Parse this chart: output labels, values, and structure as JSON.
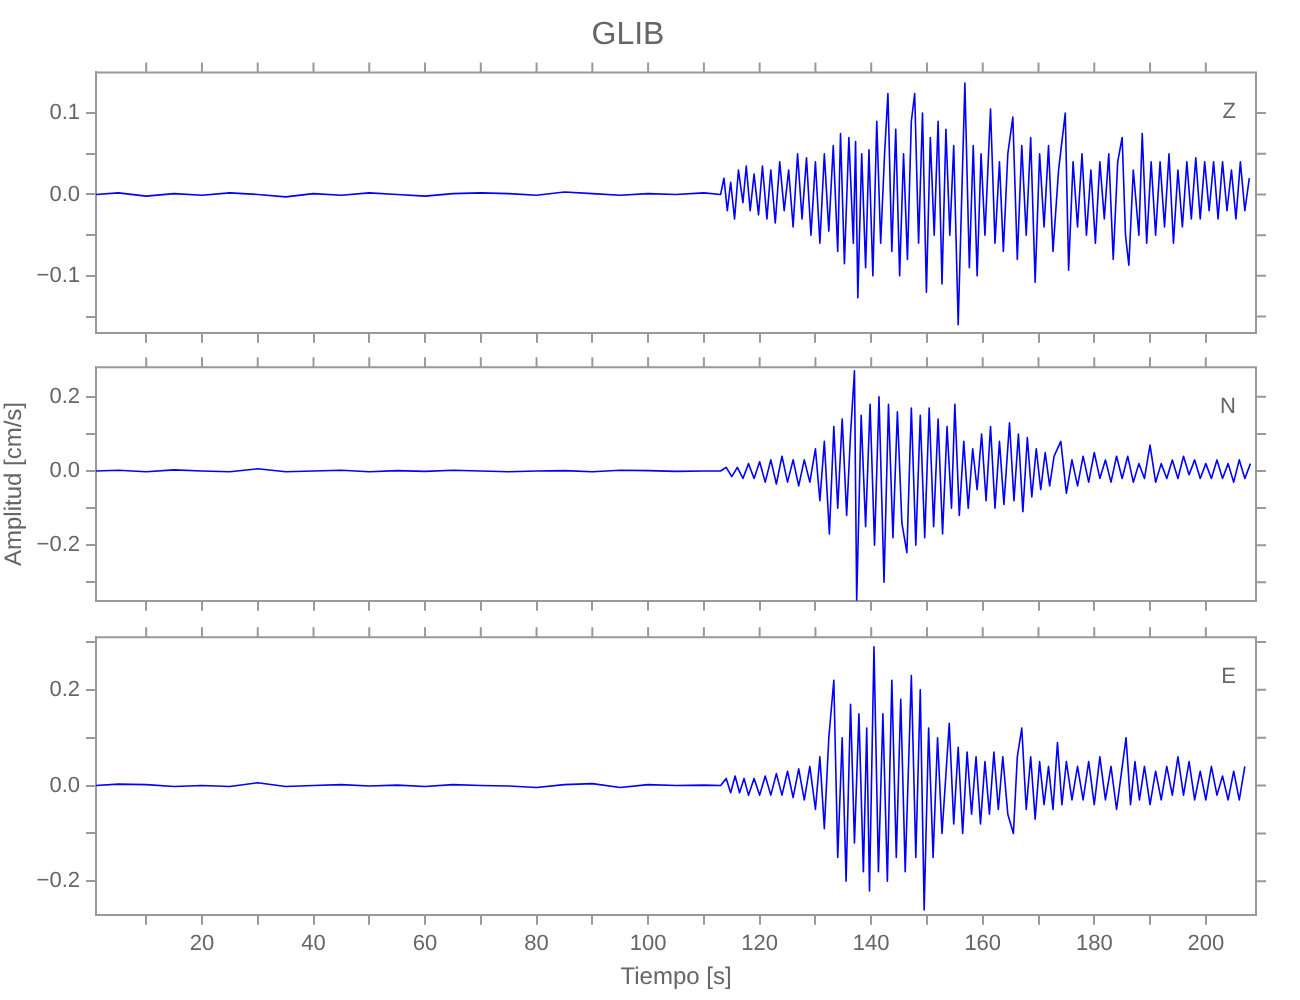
{
  "chart_data": [
    {
      "type": "line",
      "title": "GLIB",
      "annotations": [
        "Z"
      ],
      "tick_labels": "y",
      "grid": false,
      "legend": false,
      "marker": "none",
      "line_style": "solid",
      "xlim": [
        1,
        209
      ],
      "xticks": [
        {
          "value": 10,
          "label": null
        },
        {
          "value": 20,
          "label": null
        },
        {
          "value": 30,
          "label": null
        },
        {
          "value": 40,
          "label": null
        },
        {
          "value": 50,
          "label": null
        },
        {
          "value": 60,
          "label": null
        },
        {
          "value": 70,
          "label": null
        },
        {
          "value": 80,
          "label": null
        },
        {
          "value": 90,
          "label": null
        },
        {
          "value": 100,
          "label": null
        },
        {
          "value": 110,
          "label": null
        },
        {
          "value": 120,
          "label": null
        },
        {
          "value": 130,
          "label": null
        },
        {
          "value": 140,
          "label": null
        },
        {
          "value": 150,
          "label": null
        },
        {
          "value": 160,
          "label": null
        },
        {
          "value": 170,
          "label": null
        },
        {
          "value": 180,
          "label": null
        },
        {
          "value": 190,
          "label": null
        },
        {
          "value": 200,
          "label": null
        }
      ],
      "ylim": [
        -0.17,
        0.15
      ],
      "yticks": [
        {
          "value": -0.15,
          "label": null
        },
        {
          "value": -0.1,
          "label": "−0.1"
        },
        {
          "value": -0.05,
          "label": null
        },
        {
          "value": 0,
          "label": "0.0"
        },
        {
          "value": 0.05,
          "label": null
        },
        {
          "value": 0.1,
          "label": "0.1"
        }
      ],
      "x": [
        1,
        5,
        10,
        15,
        20,
        25,
        30,
        35,
        40,
        45,
        50,
        55,
        60,
        65,
        70,
        75,
        80,
        85,
        90,
        95,
        100,
        105,
        110,
        113,
        113.6,
        114.2,
        114.8,
        115.5,
        116.2,
        117,
        117.6,
        118.3,
        119,
        119.8,
        120.5,
        121.3,
        122,
        122.8,
        123.6,
        124.4,
        125.2,
        126,
        126.8,
        127.6,
        128.4,
        129.2,
        130,
        130.8,
        131.6,
        132.4,
        133.2,
        134,
        134.5,
        135.2,
        136,
        136.8,
        137.2,
        137.6,
        138.3,
        139,
        139.6,
        140.3,
        141,
        141.7,
        142.4,
        143,
        143.7,
        144.4,
        145.1,
        145.8,
        146.5,
        147.2,
        147.8,
        148.5,
        149.2,
        149.9,
        150.6,
        151.3,
        152,
        152.7,
        153.4,
        154.1,
        154.8,
        155.6,
        156.8,
        157.6,
        158.3,
        159,
        159.7,
        160.4,
        161.4,
        162.2,
        163,
        163.7,
        164.5,
        165.4,
        166.2,
        167,
        167.8,
        168.6,
        169.4,
        170.2,
        171,
        171.8,
        172.6,
        173.6,
        174.8,
        175.4,
        176.2,
        177,
        177.8,
        178.6,
        179.4,
        180.2,
        181,
        181.8,
        182.6,
        183.4,
        184.2,
        185,
        185.6,
        186.2,
        187,
        188,
        188.6,
        189.4,
        190.2,
        191,
        191.8,
        192.6,
        193.4,
        194.2,
        195,
        195.8,
        196.6,
        197.4,
        198.2,
        199,
        199.8,
        200.6,
        201.4,
        202.2,
        203,
        203.8,
        204.6,
        205.4,
        206.2,
        207,
        207.8
      ],
      "series": [
        {
          "color": "#0000ff",
          "values": [
            0,
            0.002,
            -0.002,
            0.001,
            -0.001,
            0.002,
            0,
            -0.003,
            0.001,
            -0.001,
            0.002,
            0,
            -0.002,
            0.001,
            0.002,
            0.001,
            -0.001,
            0.003,
            0.001,
            -0.001,
            0.001,
            0,
            0.002,
            0,
            0.02,
            -0.02,
            0.015,
            -0.03,
            0.03,
            -0.01,
            0.035,
            -0.02,
            0.025,
            -0.025,
            0.035,
            -0.03,
            0.03,
            -0.035,
            0.04,
            -0.02,
            0.03,
            -0.04,
            0.05,
            -0.03,
            0.045,
            -0.05,
            0.04,
            -0.06,
            0.05,
            -0.045,
            0.06,
            -0.07,
            0.075,
            -0.085,
            0.07,
            -0.06,
            0.065,
            -0.127,
            0.05,
            -0.09,
            0.055,
            -0.1,
            0.09,
            -0.06,
            0.05,
            0.124,
            -0.07,
            0.08,
            -0.1,
            0.05,
            -0.08,
            0.09,
            0.124,
            -0.06,
            0.1,
            -0.12,
            0.07,
            -0.05,
            0.09,
            -0.11,
            0.08,
            -0.05,
            0.06,
            -0.16,
            0.137,
            -0.09,
            0.06,
            -0.1,
            0.05,
            -0.05,
            0.105,
            -0.06,
            0.04,
            -0.07,
            0.05,
            0.095,
            -0.08,
            0.06,
            -0.05,
            0.07,
            -0.108,
            0.05,
            -0.04,
            0.06,
            -0.07,
            0.03,
            0.1,
            -0.093,
            0.04,
            -0.04,
            0.05,
            -0.05,
            0.03,
            -0.06,
            0.04,
            -0.03,
            0.05,
            -0.08,
            0.04,
            0.07,
            -0.05,
            -0.087,
            0.03,
            -0.05,
            0.075,
            -0.06,
            0.04,
            -0.05,
            0.04,
            -0.04,
            0.05,
            -0.06,
            0.03,
            -0.04,
            0.04,
            -0.03,
            0.045,
            -0.03,
            0.04,
            -0.02,
            0.04,
            -0.03,
            0.04,
            -0.02,
            0.03,
            -0.03,
            0.04,
            -0.02,
            0.02
          ]
        }
      ]
    },
    {
      "type": "line",
      "ylabel": "Amplitud [cm/s]",
      "annotations": [
        "N"
      ],
      "tick_labels": "y",
      "grid": false,
      "legend": false,
      "marker": "none",
      "line_style": "solid",
      "xlim": [
        1,
        209
      ],
      "xticks": [
        {
          "value": 10,
          "label": null
        },
        {
          "value": 20,
          "label": null
        },
        {
          "value": 30,
          "label": null
        },
        {
          "value": 40,
          "label": null
        },
        {
          "value": 50,
          "label": null
        },
        {
          "value": 60,
          "label": null
        },
        {
          "value": 70,
          "label": null
        },
        {
          "value": 80,
          "label": null
        },
        {
          "value": 90,
          "label": null
        },
        {
          "value": 100,
          "label": null
        },
        {
          "value": 110,
          "label": null
        },
        {
          "value": 120,
          "label": null
        },
        {
          "value": 130,
          "label": null
        },
        {
          "value": 140,
          "label": null
        },
        {
          "value": 150,
          "label": null
        },
        {
          "value": 160,
          "label": null
        },
        {
          "value": 170,
          "label": null
        },
        {
          "value": 180,
          "label": null
        },
        {
          "value": 190,
          "label": null
        },
        {
          "value": 200,
          "label": null
        }
      ],
      "ylim": [
        -0.35,
        0.28
      ],
      "yticks": [
        {
          "value": -0.3,
          "label": null
        },
        {
          "value": -0.2,
          "label": "−0.2"
        },
        {
          "value": -0.1,
          "label": null
        },
        {
          "value": 0,
          "label": "0.0"
        },
        {
          "value": 0.1,
          "label": null
        },
        {
          "value": 0.2,
          "label": "0.2"
        }
      ],
      "x": [
        1,
        5,
        10,
        15,
        20,
        25,
        30,
        35,
        40,
        45,
        50,
        55,
        60,
        65,
        70,
        75,
        80,
        85,
        90,
        95,
        100,
        105,
        110,
        113,
        114,
        115,
        116,
        117,
        118,
        119,
        120,
        121,
        122,
        123,
        124,
        125,
        126,
        127,
        128,
        129,
        130,
        130.8,
        131.6,
        132.5,
        133.3,
        134,
        134.8,
        135.6,
        136.3,
        137,
        137.4,
        138.2,
        139,
        139.8,
        140.6,
        141.4,
        142.3,
        143.1,
        143.9,
        144.7,
        145.5,
        146.4,
        147.2,
        148,
        148.8,
        149.6,
        150.4,
        151.2,
        152,
        152.8,
        153.6,
        154.4,
        155,
        155.8,
        156.6,
        157.4,
        158.2,
        159,
        159.8,
        160.6,
        161.4,
        162.2,
        163,
        163.8,
        164.8,
        165.6,
        166.4,
        167.2,
        168,
        168.8,
        169.6,
        170.4,
        171.2,
        172,
        172.8,
        174,
        175,
        176,
        177,
        178,
        179,
        180,
        181,
        182,
        183,
        184,
        185,
        186,
        187,
        188,
        189,
        190,
        191,
        192,
        193,
        194,
        195,
        196,
        197,
        198,
        199,
        200,
        201,
        202,
        203,
        204,
        205,
        206,
        207,
        208
      ],
      "series": [
        {
          "color": "#0000ff",
          "values": [
            0,
            0.002,
            -0.002,
            0.003,
            0,
            -0.002,
            0.006,
            -0.002,
            0,
            0.002,
            -0.002,
            0.001,
            -0.001,
            0.002,
            0,
            -0.002,
            0,
            0.001,
            -0.002,
            0.002,
            0.001,
            -0.001,
            0,
            0,
            0.01,
            -0.015,
            0.01,
            -0.02,
            0.02,
            -0.02,
            0.025,
            -0.03,
            0.03,
            -0.035,
            0.04,
            -0.03,
            0.03,
            -0.04,
            0.03,
            -0.03,
            0.06,
            -0.08,
            0.08,
            -0.17,
            0.12,
            -0.1,
            0.14,
            -0.12,
            0.1,
            0.27,
            -0.35,
            0.15,
            -0.15,
            0.18,
            -0.2,
            0.2,
            -0.3,
            0.18,
            -0.18,
            0.16,
            -0.14,
            -0.22,
            0.17,
            -0.2,
            0.15,
            -0.18,
            0.17,
            -0.15,
            0.14,
            -0.17,
            0.12,
            -0.1,
            0.18,
            -0.12,
            0.08,
            -0.1,
            0.06,
            -0.05,
            0.1,
            -0.08,
            0.12,
            -0.1,
            0.08,
            -0.09,
            0.13,
            -0.08,
            0.1,
            -0.11,
            0.09,
            -0.07,
            0.06,
            -0.05,
            0.05,
            -0.04,
            0.04,
            0.08,
            -0.06,
            0.03,
            -0.04,
            0.04,
            -0.03,
            0.05,
            -0.02,
            0.03,
            -0.03,
            0.04,
            -0.02,
            0.04,
            -0.03,
            0.02,
            -0.02,
            0.07,
            -0.03,
            0.02,
            -0.02,
            0.03,
            -0.02,
            0.04,
            -0.01,
            0.03,
            -0.02,
            0.02,
            -0.02,
            0.03,
            -0.02,
            0.02,
            -0.03,
            0.03,
            -0.02,
            0.02
          ]
        }
      ]
    },
    {
      "type": "line",
      "xlabel": "Tiempo [s]",
      "annotations": [
        "E"
      ],
      "grid": false,
      "legend": false,
      "marker": "none",
      "line_style": "solid",
      "xlim": [
        1,
        209
      ],
      "xticks": [
        {
          "value": 10,
          "label": null
        },
        20,
        {
          "value": 30,
          "label": null
        },
        40,
        {
          "value": 50,
          "label": null
        },
        60,
        {
          "value": 70,
          "label": null
        },
        80,
        {
          "value": 90,
          "label": null
        },
        100,
        {
          "value": 110,
          "label": null
        },
        120,
        {
          "value": 130,
          "label": null
        },
        140,
        {
          "value": 150,
          "label": null
        },
        160,
        {
          "value": 170,
          "label": null
        },
        180,
        {
          "value": 190,
          "label": null
        },
        200
      ],
      "ylim": [
        -0.27,
        0.31
      ],
      "yticks": [
        {
          "value": -0.2,
          "label": "−0.2"
        },
        {
          "value": -0.1,
          "label": null
        },
        {
          "value": 0,
          "label": "0.0"
        },
        {
          "value": 0.1,
          "label": null
        },
        {
          "value": 0.2,
          "label": "0.2"
        },
        {
          "value": 0.3,
          "label": null
        }
      ],
      "x": [
        1,
        5,
        10,
        15,
        20,
        25,
        30,
        35,
        40,
        45,
        50,
        55,
        60,
        65,
        70,
        75,
        80,
        85,
        90,
        95,
        100,
        105,
        110,
        113,
        114,
        114.8,
        115.6,
        116.4,
        117.2,
        118,
        119,
        120,
        121,
        122,
        123,
        124,
        125,
        126,
        127,
        128,
        129,
        130,
        130.8,
        131.6,
        132.4,
        133.3,
        134,
        134.8,
        135.5,
        136.3,
        137,
        137.8,
        138.6,
        139.2,
        139.7,
        140.5,
        141.3,
        142.1,
        142.9,
        143.7,
        144.5,
        145.3,
        146.1,
        147.2,
        148,
        148.8,
        149.5,
        150.3,
        151.1,
        151.9,
        152.7,
        154,
        154.8,
        155.6,
        156.4,
        157.2,
        158,
        158.8,
        159.6,
        160.4,
        161.2,
        162,
        162.8,
        163.6,
        164.5,
        165.5,
        166.2,
        167,
        167.8,
        168.6,
        169.4,
        170.2,
        171,
        171.8,
        172.6,
        173.4,
        174.2,
        175,
        176,
        177,
        178,
        179,
        180,
        181,
        182,
        183,
        184,
        185.7,
        186.5,
        187.3,
        188.1,
        189,
        190,
        191,
        192,
        193,
        194,
        195,
        196,
        197,
        198,
        199,
        200,
        201,
        202,
        203,
        204,
        205,
        206,
        207
      ],
      "series": [
        {
          "color": "#0000ff",
          "values": [
            0,
            0.003,
            0.002,
            -0.002,
            0,
            -0.002,
            0.006,
            -0.002,
            0,
            0.002,
            -0.001,
            0.001,
            -0.002,
            0.002,
            0,
            -0.001,
            -0.004,
            0.002,
            0.004,
            -0.004,
            0.002,
            0,
            0.001,
            0,
            0.015,
            -0.015,
            0.02,
            -0.015,
            0.015,
            -0.02,
            0.015,
            -0.02,
            0.02,
            -0.02,
            0.025,
            -0.02,
            0.03,
            -0.025,
            0.035,
            -0.03,
            0.04,
            -0.05,
            0.06,
            -0.09,
            0.1,
            0.22,
            -0.15,
            0.1,
            -0.2,
            0.17,
            -0.12,
            0.15,
            -0.18,
            0.12,
            -0.22,
            0.29,
            -0.18,
            0.15,
            -0.2,
            0.22,
            -0.15,
            0.18,
            -0.18,
            0.23,
            -0.15,
            0.2,
            -0.26,
            0.12,
            -0.15,
            0.1,
            -0.1,
            0.13,
            -0.08,
            0.08,
            -0.1,
            0.07,
            -0.06,
            0.06,
            -0.08,
            0.05,
            -0.06,
            0.07,
            -0.05,
            0.06,
            -0.06,
            -0.1,
            0.06,
            0.12,
            -0.05,
            0.06,
            -0.07,
            0.05,
            -0.04,
            0.04,
            -0.05,
            0.09,
            -0.04,
            0.05,
            -0.03,
            0.04,
            -0.03,
            0.05,
            -0.04,
            0.06,
            -0.03,
            0.04,
            -0.05,
            0.1,
            -0.04,
            0.05,
            -0.03,
            0.04,
            -0.04,
            0.03,
            -0.03,
            0.04,
            -0.02,
            0.06,
            -0.02,
            0.05,
            -0.03,
            0.03,
            -0.03,
            0.04,
            -0.02,
            0.02,
            -0.03,
            0.03,
            -0.03,
            0.04
          ]
        }
      ]
    }
  ]
}
